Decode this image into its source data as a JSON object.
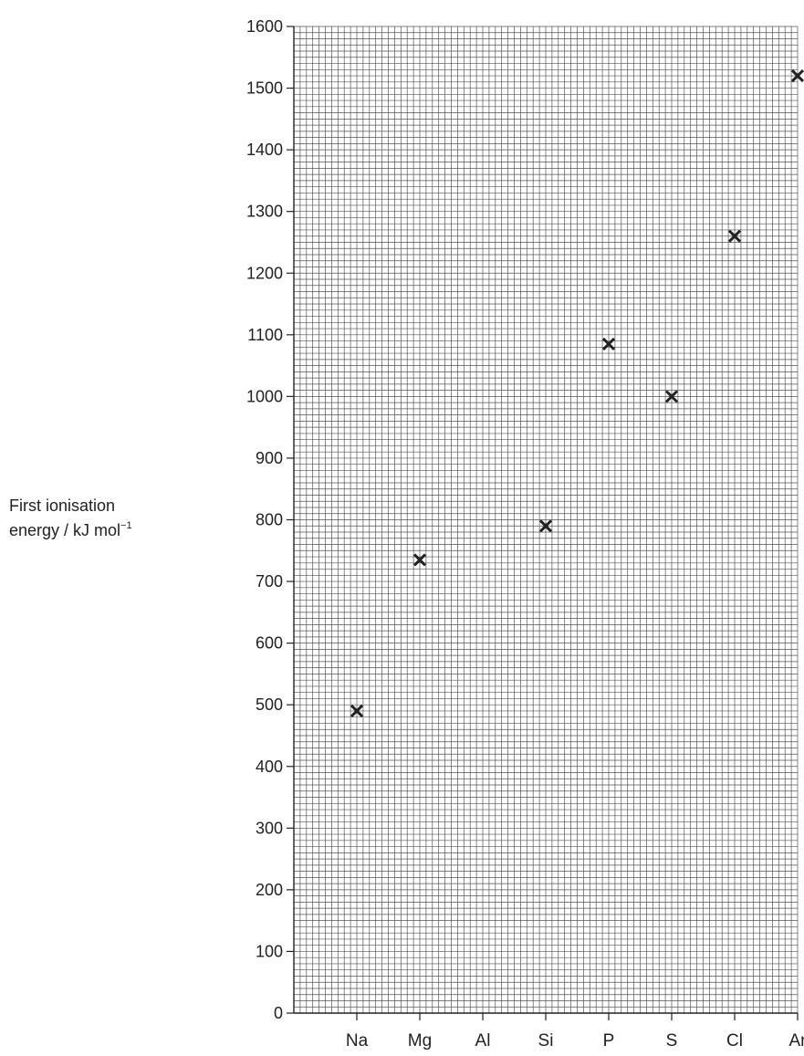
{
  "chart_data": {
    "type": "scatter",
    "categories": [
      "Na",
      "Mg",
      "Al",
      "Si",
      "P",
      "S",
      "Cl",
      "Ar"
    ],
    "values": [
      490,
      735,
      null,
      790,
      1085,
      1000,
      1260,
      1520
    ],
    "marker": "x",
    "ylabel": {
      "text": "First ionisation energy / kJ mol",
      "line1": "First ionisation",
      "line2": "energy / kJ mol",
      "superscript": "−1"
    },
    "ylim": [
      0,
      1600
    ],
    "yticks": [
      0,
      100,
      200,
      300,
      400,
      500,
      600,
      700,
      800,
      900,
      1000,
      1100,
      1200,
      1300,
      1400,
      1500,
      1600
    ],
    "grid": true,
    "colors": {
      "grid": "#555555",
      "axis": "#222222",
      "marker": "#222222"
    }
  }
}
